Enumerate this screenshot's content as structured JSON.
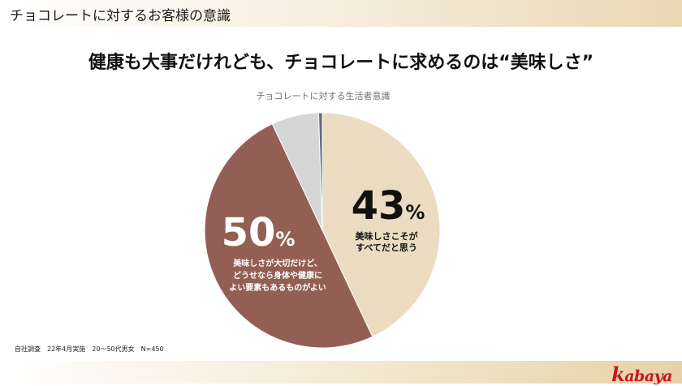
{
  "header": {
    "title": "チョコレートに対するお客様の意識"
  },
  "headline": "健康も大事だけれども、チョコレートに求めるのは“美味しさ”",
  "footnote": "自社調査　22年4月実施　20～50代男女　N=450",
  "logo": {
    "text": "kabaya",
    "color": "#c8161d"
  },
  "chart_data": {
    "type": "pie",
    "title": "チョコレートに対する生活者意識",
    "slices": [
      {
        "value": 43,
        "percent_text": "43",
        "unit": "%",
        "label_lines": [
          "美味しさこそが",
          "すべてだと思う"
        ],
        "color": "#ebdcc1"
      },
      {
        "value": 50,
        "percent_text": "50",
        "unit": "%",
        "label_lines": [
          "美味しさが大切だけど、",
          "どうせなら身体や健康に",
          "よい要素もあるものがよい"
        ],
        "color": "#935f54"
      },
      {
        "value": 6.5,
        "percent_text": "",
        "unit": "",
        "label_lines": [],
        "color": "#d6d6d6"
      },
      {
        "value": 0.5,
        "percent_text": "",
        "unit": "",
        "label_lines": [],
        "color": "#5f6a78"
      }
    ]
  }
}
